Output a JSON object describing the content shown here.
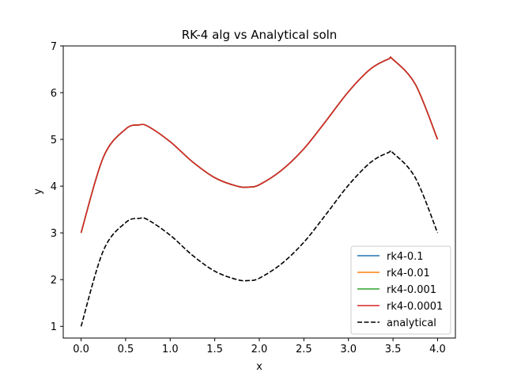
{
  "chart_data": {
    "type": "line",
    "title": "RK-4 alg vs Analytical soln",
    "xlabel": "x",
    "ylabel": "y",
    "xlim": [
      -0.2,
      4.2
    ],
    "ylim": [
      0.75,
      7.0
    ],
    "xticks": [
      0.0,
      0.5,
      1.0,
      1.5,
      2.0,
      2.5,
      3.0,
      3.5,
      4.0
    ],
    "xtick_labels": [
      "0.0",
      "0.5",
      "1.0",
      "1.5",
      "2.0",
      "2.5",
      "3.0",
      "3.5",
      "4.0"
    ],
    "yticks": [
      1,
      2,
      3,
      4,
      5,
      6,
      7
    ],
    "ytick_labels": [
      "1",
      "2",
      "3",
      "4",
      "5",
      "6",
      "7"
    ],
    "grid": false,
    "legend_position": "lower-right",
    "x": [
      0.0,
      0.25,
      0.5,
      0.65,
      0.75,
      1.0,
      1.25,
      1.5,
      1.75,
      1.88,
      2.0,
      2.25,
      2.5,
      2.75,
      3.0,
      3.25,
      3.45,
      3.5,
      3.75,
      4.0
    ],
    "series": [
      {
        "name": "rk4-0.1",
        "color": "#1f77b4",
        "style": "solid",
        "values": [
          3.0,
          4.62,
          5.22,
          5.31,
          5.28,
          4.95,
          4.52,
          4.18,
          4.0,
          3.98,
          4.03,
          4.34,
          4.8,
          5.4,
          6.02,
          6.51,
          6.72,
          6.71,
          6.18,
          5.0
        ]
      },
      {
        "name": "rk4-0.01",
        "color": "#ff7f0e",
        "style": "solid",
        "values": [
          3.0,
          4.62,
          5.22,
          5.31,
          5.28,
          4.95,
          4.52,
          4.18,
          4.0,
          3.98,
          4.03,
          4.34,
          4.8,
          5.4,
          6.02,
          6.51,
          6.72,
          6.71,
          6.18,
          5.0
        ]
      },
      {
        "name": "rk4-0.001",
        "color": "#2ca02c",
        "style": "solid",
        "values": [
          3.0,
          4.62,
          5.22,
          5.31,
          5.28,
          4.95,
          4.52,
          4.18,
          4.0,
          3.98,
          4.03,
          4.34,
          4.8,
          5.4,
          6.02,
          6.51,
          6.72,
          6.71,
          6.18,
          5.0
        ]
      },
      {
        "name": "rk4-0.0001",
        "color": "#d62728",
        "style": "solid",
        "values": [
          3.0,
          4.62,
          5.22,
          5.31,
          5.28,
          4.95,
          4.52,
          4.18,
          4.0,
          3.98,
          4.03,
          4.34,
          4.8,
          5.4,
          6.02,
          6.51,
          6.72,
          6.71,
          6.18,
          5.0
        ]
      },
      {
        "name": "analytical",
        "color": "#000000",
        "style": "dashed",
        "values": [
          1.0,
          2.62,
          3.22,
          3.31,
          3.28,
          2.95,
          2.52,
          2.18,
          2.0,
          1.98,
          2.03,
          2.34,
          2.8,
          3.4,
          4.02,
          4.51,
          4.72,
          4.71,
          4.18,
          3.0
        ]
      }
    ]
  }
}
